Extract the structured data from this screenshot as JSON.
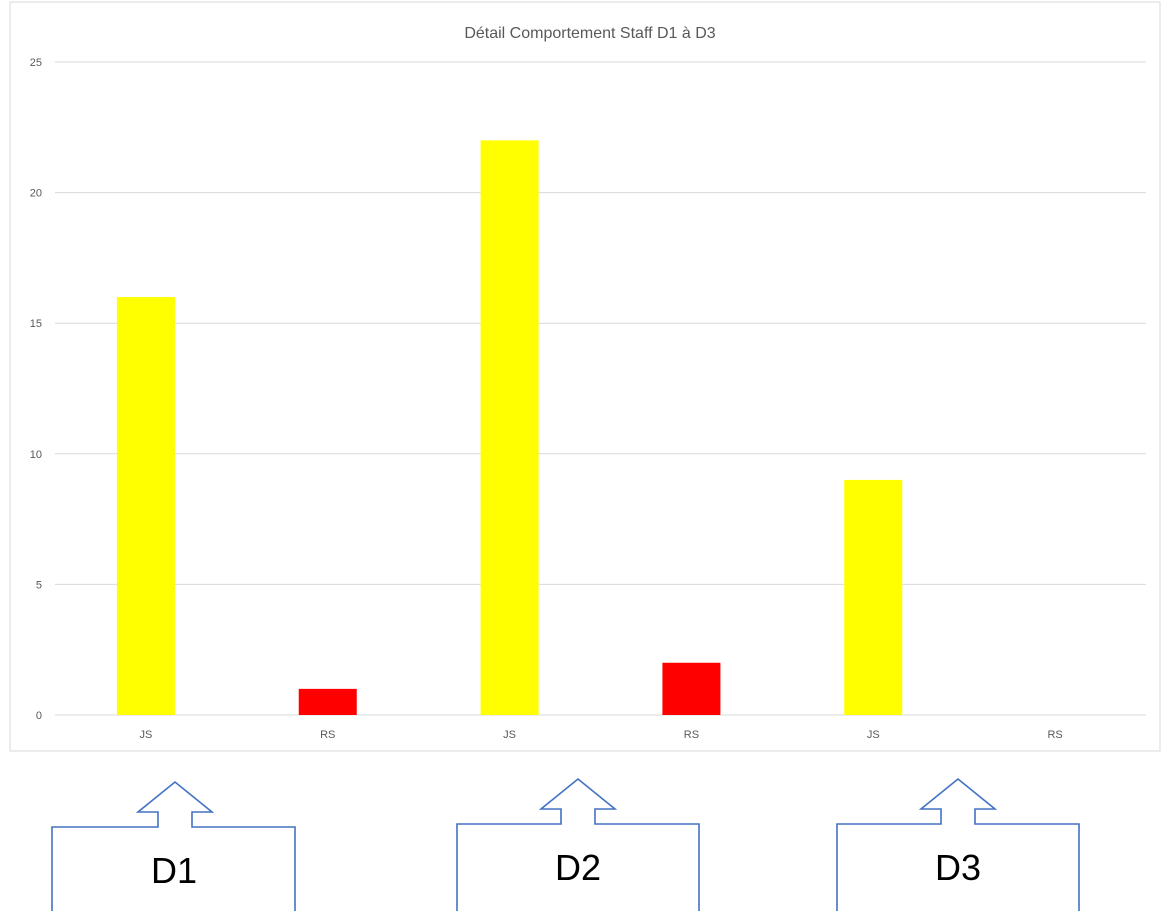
{
  "chart_data": {
    "type": "bar",
    "title": "Détail Comportement Staff D1 à D3",
    "categories": [
      "JS",
      "RS",
      "JS",
      "RS",
      "JS",
      "RS"
    ],
    "values": [
      16,
      1,
      22,
      2,
      9,
      0
    ],
    "bar_colors": [
      "#ffff00",
      "#ff0000",
      "#ffff00",
      "#ff0000",
      "#ffff00",
      "#ff0000"
    ],
    "ylim": [
      0,
      25
    ],
    "yticks": [
      0,
      5,
      10,
      15,
      20,
      25
    ],
    "xlabel": "",
    "ylabel": "",
    "grid": true,
    "legend": "none"
  },
  "callouts": [
    {
      "label": "D1"
    },
    {
      "label": "D2"
    },
    {
      "label": "D3"
    }
  ],
  "colors": {
    "callout_outline": "#4472c4",
    "grid": "#d9d9d9",
    "text": "#595959"
  }
}
